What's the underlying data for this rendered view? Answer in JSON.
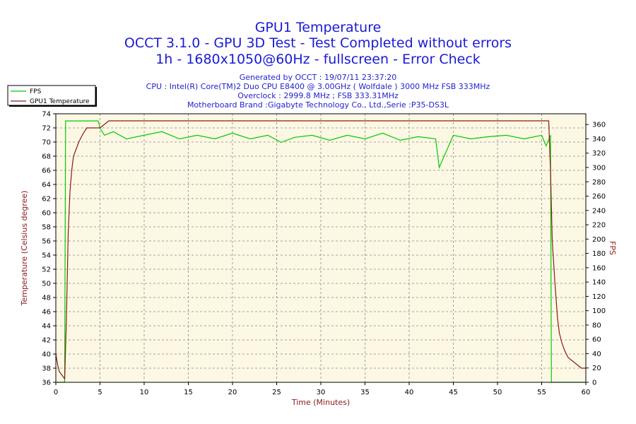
{
  "title": "GPU1 Temperature",
  "subtitle1": "OCCT 3.1.0 - GPU 3D Test - Test Completed without errors",
  "subtitle2": "1h - 1680x1050@60Hz - fullscreen - Error Check",
  "info": [
    "Generated by OCCT : 19/07/11 23:37:20",
    "CPU : Intel(R) Core(TM)2 Duo CPU E8400 @ 3.00GHz ( Wolfdale ) 3000 MHz FSB 333MHz",
    "Overclock : 2999.8 MHz ; FSB 333.31MHz",
    "Motherboard Brand :Gigabyte Technology Co., Ltd.,Serie :P35-DS3L"
  ],
  "colors": {
    "fps": "#00cc00",
    "temperature": "#8b1a1a",
    "plot_bg": "#fcf8e4",
    "title": "#1a1ad6"
  },
  "chart_data": {
    "type": "line",
    "xlabel": "Time (Minutes)",
    "ylabel": "Temperature (Celsius degree)",
    "y2label": "FPS",
    "xlim": [
      0,
      60
    ],
    "ylim": [
      36,
      74
    ],
    "y2lim": [
      0,
      375
    ],
    "x_ticks": [
      0,
      5,
      10,
      15,
      20,
      25,
      30,
      35,
      40,
      45,
      50,
      55,
      60
    ],
    "y_ticks": [
      36,
      38,
      40,
      42,
      44,
      46,
      48,
      50,
      52,
      54,
      56,
      58,
      60,
      62,
      64,
      66,
      68,
      70,
      72,
      74
    ],
    "y2_ticks": [
      0,
      20,
      40,
      60,
      80,
      100,
      120,
      140,
      160,
      180,
      200,
      220,
      240,
      260,
      280,
      300,
      320,
      340,
      360
    ],
    "grid": true,
    "legend_position": "top-left",
    "series": [
      {
        "name": "FPS",
        "axis": "right",
        "x": [
          0,
          1.0,
          1.1,
          4.8,
          5.0,
          5.5,
          6.5,
          8.0,
          10.0,
          12.0,
          14.0,
          16.0,
          18.0,
          20.0,
          22.0,
          24.0,
          25.5,
          27.0,
          29.0,
          31.0,
          33.0,
          35.0,
          37.0,
          39.0,
          41.0,
          43.0,
          43.4,
          45.0,
          47.0,
          49.0,
          51.0,
          53.0,
          55.0,
          55.5,
          56.0,
          56.1,
          60.0
        ],
        "y": [
          0,
          0,
          365,
          365,
          355,
          345,
          350,
          340,
          345,
          350,
          340,
          345,
          340,
          348,
          340,
          345,
          335,
          342,
          345,
          338,
          345,
          340,
          348,
          338,
          343,
          340,
          300,
          345,
          340,
          343,
          345,
          340,
          345,
          330,
          345,
          0,
          0
        ]
      },
      {
        "name": "GPU1 Temperature",
        "axis": "left",
        "x": [
          0,
          0.2,
          0.4,
          0.7,
          1.0,
          1.2,
          1.4,
          1.6,
          1.8,
          2.0,
          2.3,
          2.6,
          3.0,
          3.5,
          4.0,
          4.5,
          5.0,
          6.0,
          10.0,
          15.0,
          20.0,
          25.0,
          30.0,
          35.0,
          40.0,
          45.0,
          50.0,
          55.0,
          55.8,
          56.0,
          56.2,
          56.5,
          56.8,
          57.0,
          57.3,
          57.6,
          58.0,
          58.5,
          59.0,
          59.5,
          60.0
        ],
        "y": [
          40,
          38.5,
          37.5,
          37,
          36.5,
          45,
          57,
          63,
          66,
          68,
          69,
          70,
          71,
          72,
          72,
          72,
          72,
          73,
          73,
          73,
          73,
          73,
          73,
          73,
          73,
          73,
          73,
          73,
          73,
          66,
          56,
          50,
          45,
          43,
          41.5,
          40.5,
          39.5,
          39,
          38.5,
          38,
          38
        ]
      }
    ]
  }
}
